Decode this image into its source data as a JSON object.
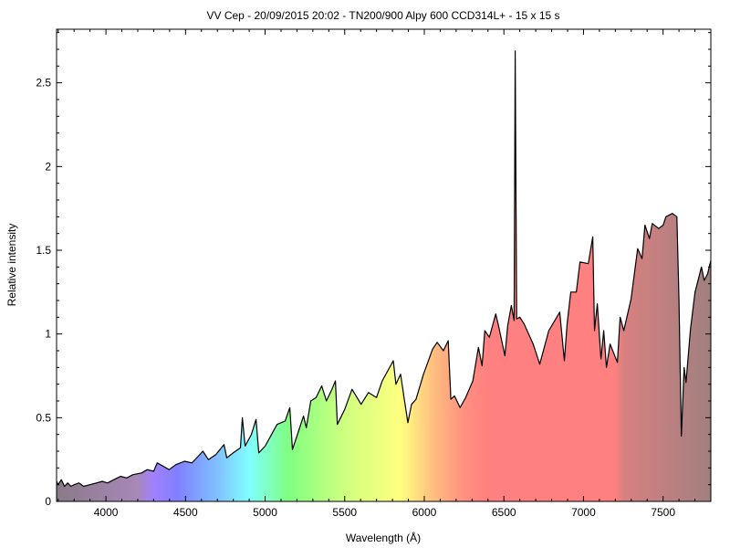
{
  "chart_data": {
    "type": "area",
    "title": "VV Cep - 20/09/2015 20:02 - TN200/900 Alpy 600 CCD314L+ - 15 x 15 s",
    "xlabel": "Wavelength (Å)",
    "ylabel": "Relative intensity",
    "xlim": [
      3690,
      7800
    ],
    "ylim": [
      0,
      2.82
    ],
    "xticks": [
      4000,
      4500,
      5000,
      5500,
      6000,
      6500,
      7000,
      7500
    ],
    "xtick_labels": [
      "4000",
      "4500",
      "5000",
      "5500",
      "6000",
      "6500",
      "7000",
      "7500"
    ],
    "yticks": [
      0,
      0.5,
      1,
      1.5,
      2,
      2.5
    ],
    "ytick_labels": [
      "0",
      "0.5",
      "1",
      "1.5",
      "2",
      "2.5"
    ],
    "grid": false,
    "fill": "spectral color gradient under curve",
    "line_color": "#000000",
    "x": [
      3690,
      3700,
      3720,
      3740,
      3760,
      3780,
      3800,
      3830,
      3860,
      3900,
      3940,
      3977,
      4010,
      4050,
      4092,
      4130,
      4170,
      4224,
      4260,
      4300,
      4322,
      4360,
      4397,
      4440,
      4494,
      4540,
      4580,
      4609,
      4644,
      4690,
      4742,
      4759,
      4800,
      4845,
      4857,
      4874,
      4914,
      4943,
      4960,
      5000,
      5029,
      5075,
      5126,
      5155,
      5172,
      5210,
      5241,
      5259,
      5287,
      5320,
      5356,
      5385,
      5420,
      5442,
      5454,
      5500,
      5546,
      5603,
      5649,
      5700,
      5736,
      5805,
      5822,
      5851,
      5873,
      5897,
      5920,
      5948,
      5995,
      6052,
      6081,
      6120,
      6150,
      6167,
      6190,
      6225,
      6260,
      6305,
      6340,
      6363,
      6380,
      6409,
      6449,
      6466,
      6506,
      6524,
      6547,
      6564,
      6571,
      6580,
      6600,
      6627,
      6684,
      6725,
      6782,
      6851,
      6880,
      6897,
      6920,
      6955,
      6978,
      7030,
      7058,
      7069,
      7087,
      7110,
      7127,
      7144,
      7167,
      7213,
      7230,
      7253,
      7299,
      7340,
      7368,
      7386,
      7414,
      7432,
      7472,
      7500,
      7518,
      7558,
      7587,
      7600,
      7615,
      7632,
      7644,
      7672,
      7701,
      7741,
      7758,
      7780,
      7800
    ],
    "y": [
      0.12,
      0.1,
      0.13,
      0.09,
      0.11,
      0.09,
      0.1,
      0.11,
      0.09,
      0.1,
      0.11,
      0.12,
      0.11,
      0.13,
      0.15,
      0.14,
      0.16,
      0.17,
      0.19,
      0.18,
      0.23,
      0.21,
      0.19,
      0.22,
      0.24,
      0.23,
      0.27,
      0.3,
      0.25,
      0.28,
      0.34,
      0.26,
      0.29,
      0.32,
      0.5,
      0.33,
      0.4,
      0.49,
      0.29,
      0.33,
      0.38,
      0.46,
      0.48,
      0.56,
      0.31,
      0.42,
      0.51,
      0.44,
      0.6,
      0.62,
      0.69,
      0.6,
      0.67,
      0.72,
      0.46,
      0.55,
      0.67,
      0.58,
      0.65,
      0.62,
      0.72,
      0.84,
      0.7,
      0.76,
      0.62,
      0.47,
      0.58,
      0.61,
      0.76,
      0.91,
      0.95,
      0.9,
      0.96,
      0.61,
      0.63,
      0.56,
      0.62,
      0.72,
      0.92,
      0.81,
      1.02,
      0.98,
      1.12,
      1.05,
      0.87,
      1.05,
      1.17,
      1.08,
      2.69,
      1.09,
      1.1,
      1.06,
      0.94,
      0.82,
      1.02,
      1.13,
      0.84,
      1.06,
      1.25,
      1.25,
      1.43,
      1.42,
      1.58,
      1.02,
      1.18,
      0.85,
      1.02,
      0.8,
      0.94,
      0.83,
      1.1,
      1.02,
      1.21,
      1.51,
      1.45,
      1.65,
      1.57,
      1.66,
      1.63,
      1.65,
      1.7,
      1.72,
      1.7,
      1.2,
      0.39,
      0.8,
      0.71,
      1.03,
      1.25,
      1.4,
      1.32,
      1.36,
      1.44
    ],
    "gradient_stops": [
      {
        "wavelength": 3700,
        "color": "#8a7a88"
      },
      {
        "wavelength": 4200,
        "color": "#a888b8"
      },
      {
        "wavelength": 4300,
        "color": "#a080ff"
      },
      {
        "wavelength": 4450,
        "color": "#8080ff"
      },
      {
        "wavelength": 4700,
        "color": "#80c0ff"
      },
      {
        "wavelength": 4900,
        "color": "#80ffff"
      },
      {
        "wavelength": 5150,
        "color": "#80ff80"
      },
      {
        "wavelength": 5500,
        "color": "#d0ff80"
      },
      {
        "wavelength": 5850,
        "color": "#ffff80"
      },
      {
        "wavelength": 6050,
        "color": "#ffc080"
      },
      {
        "wavelength": 6250,
        "color": "#ff9080"
      },
      {
        "wavelength": 6400,
        "color": "#ff8080"
      },
      {
        "wavelength": 7200,
        "color": "#ff8080"
      },
      {
        "wavelength": 7250,
        "color": "#d88080"
      },
      {
        "wavelength": 7800,
        "color": "#a08080"
      }
    ]
  }
}
